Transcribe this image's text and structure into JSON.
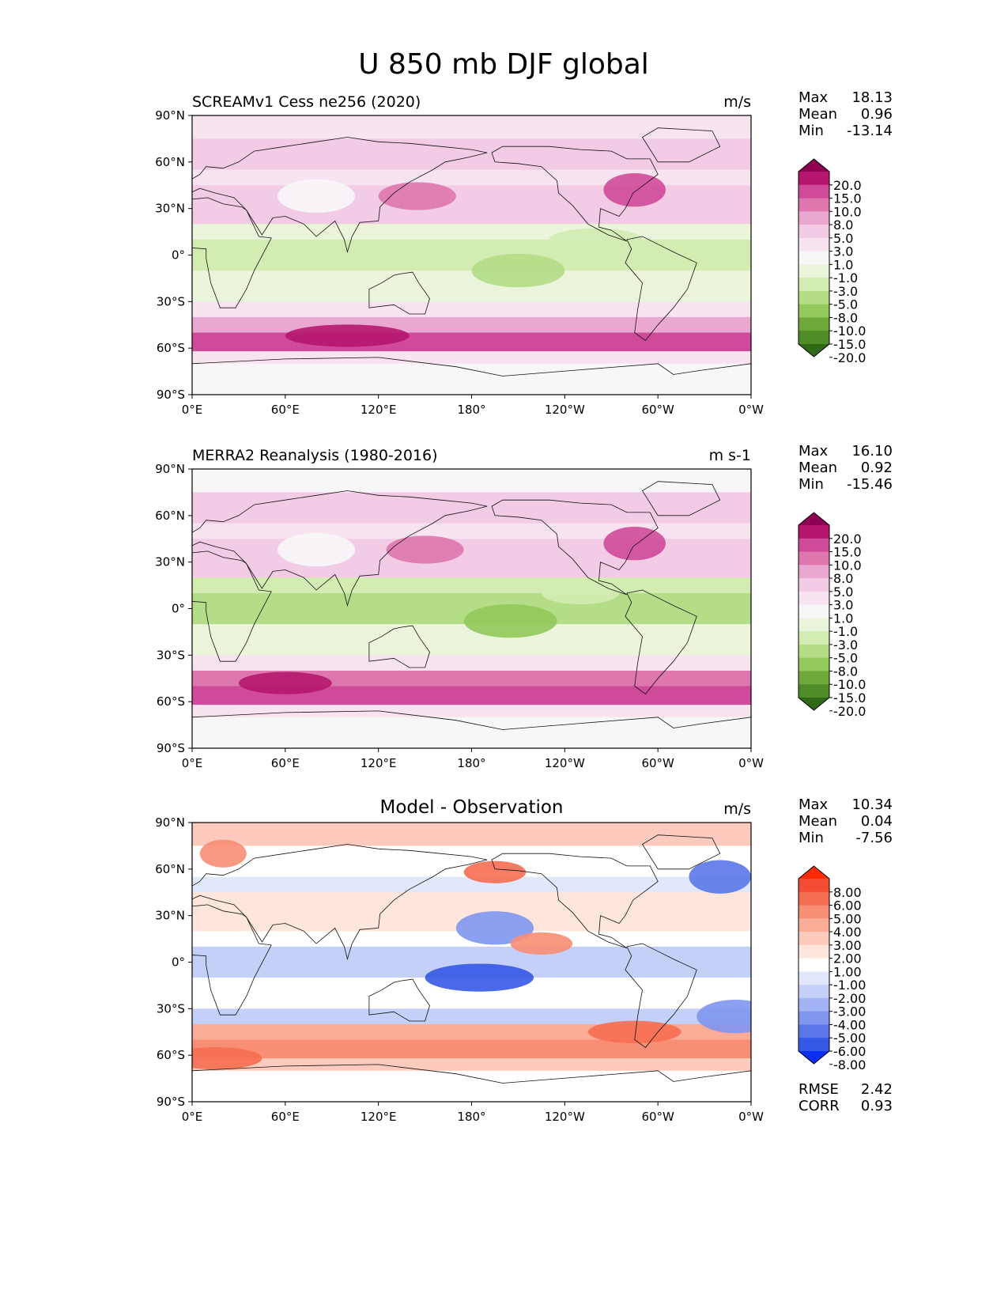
{
  "figure": {
    "title": "U 850 mb DJF global"
  },
  "axes": {
    "lat_ticks": [
      "90°N",
      "60°N",
      "30°N",
      "0°",
      "30°S",
      "60°S",
      "90°S"
    ],
    "lon_ticks": [
      "0°E",
      "60°E",
      "120°E",
      "180°",
      "120°W",
      "60°W",
      "0°W"
    ]
  },
  "panels": [
    {
      "id": "test",
      "title": "SCREAMv1 Cess ne256 (2020)",
      "units": "m/s",
      "stats": [
        {
          "label": "Max",
          "value": "18.13"
        },
        {
          "label": "Mean",
          "value": "0.96"
        },
        {
          "label": "Min",
          "value": "-13.14"
        }
      ],
      "colorbar": {
        "labels": [
          "20.0",
          "15.0",
          "10.0",
          "8.0",
          "5.0",
          "3.0",
          "1.0",
          "-1.0",
          "-3.0",
          "-5.0",
          "-8.0",
          "-10.0",
          "-15.0",
          "-20.0"
        ],
        "colors": [
          "#8e0152",
          "#b5176e",
          "#cf4a98",
          "#de77ae",
          "#eaa8d0",
          "#f2cbe4",
          "#f8e4f0",
          "#f7f7f7",
          "#eaf5dc",
          "#d2ecb2",
          "#b3dd86",
          "#91c95a",
          "#6ea838",
          "#4d8c26",
          "#2f6b17"
        ]
      },
      "extra_stats": []
    },
    {
      "id": "ref",
      "title": "MERRA2 Reanalysis (1980-2016)",
      "units": "m s-1",
      "stats": [
        {
          "label": "Max",
          "value": "16.10"
        },
        {
          "label": "Mean",
          "value": "0.92"
        },
        {
          "label": "Min",
          "value": "-15.46"
        }
      ],
      "colorbar": {
        "labels": [
          "20.0",
          "15.0",
          "10.0",
          "8.0",
          "5.0",
          "3.0",
          "1.0",
          "-1.0",
          "-3.0",
          "-5.0",
          "-8.0",
          "-10.0",
          "-15.0",
          "-20.0"
        ],
        "colors": [
          "#8e0152",
          "#b5176e",
          "#cf4a98",
          "#de77ae",
          "#eaa8d0",
          "#f2cbe4",
          "#f8e4f0",
          "#f7f7f7",
          "#eaf5dc",
          "#d2ecb2",
          "#b3dd86",
          "#91c95a",
          "#6ea838",
          "#4d8c26",
          "#2f6b17"
        ]
      },
      "extra_stats": []
    },
    {
      "id": "diff",
      "title": "Model - Observation",
      "units": "m/s",
      "stats": [
        {
          "label": "Max",
          "value": "10.34"
        },
        {
          "label": "Mean",
          "value": "0.04"
        },
        {
          "label": "Min",
          "value": "-7.56"
        }
      ],
      "colorbar": {
        "labels": [
          "8.00",
          "6.00",
          "5.00",
          "4.00",
          "3.00",
          "2.00",
          "1.00",
          "-1.00",
          "-2.00",
          "-3.00",
          "-4.00",
          "-5.00",
          "-6.00",
          "-8.00"
        ],
        "colors": [
          "#ff2a00",
          "#f44d33",
          "#f66e52",
          "#f88e74",
          "#fbac97",
          "#fdcbbd",
          "#fee6dd",
          "#ffffff",
          "#e2e8fc",
          "#c4d0f8",
          "#a3b4f4",
          "#8096ef",
          "#5b77ea",
          "#3658e6",
          "#0a2ff2"
        ]
      },
      "extra_stats": [
        {
          "label": "RMSE",
          "value": "2.42"
        },
        {
          "label": "CORR",
          "value": "0.93"
        }
      ]
    }
  ]
}
